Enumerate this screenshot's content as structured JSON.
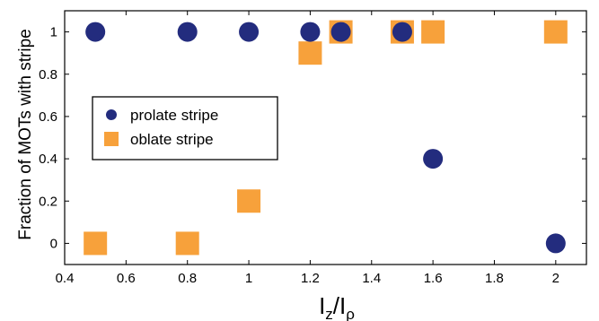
{
  "chart_data": {
    "type": "scatter",
    "xlabel": "I",
    "xlabel_sub_1": "z",
    "xlabel_sep": "/I",
    "xlabel_sub_2": "ρ",
    "ylabel": "Fraction of MOTs with stripe",
    "xlim": [
      0.4,
      2.1
    ],
    "ylim": [
      -0.1,
      1.1
    ],
    "xticks": [
      0.4,
      0.6,
      0.8,
      1,
      1.2,
      1.4,
      1.6,
      1.8,
      2
    ],
    "xtick_labels": [
      "0.4",
      "0.6",
      "0.8",
      "1",
      "1.2",
      "1.4",
      "1.6",
      "1.8",
      "2"
    ],
    "yticks": [
      0,
      0.2,
      0.4,
      0.6,
      0.8,
      1
    ],
    "ytick_labels": [
      "0",
      "0.2",
      "0.4",
      "0.6",
      "0.8",
      "1"
    ],
    "grid": false,
    "legend_position": "middle-left",
    "series": [
      {
        "name": "oblate stripe",
        "marker": "square",
        "color": "#F7A13B",
        "x": [
          0.5,
          0.8,
          1.0,
          1.2,
          1.3,
          1.5,
          1.6,
          2.0
        ],
        "y": [
          0,
          0,
          0.2,
          0.9,
          1,
          1,
          1,
          1
        ]
      },
      {
        "name": "prolate stripe",
        "marker": "circle",
        "color": "#232C7E",
        "x": [
          0.5,
          0.8,
          1.0,
          1.2,
          1.3,
          1.5,
          1.6,
          2.0
        ],
        "y": [
          1,
          1,
          1,
          1,
          1,
          1,
          0.4,
          0
        ]
      }
    ],
    "legend_order": [
      "prolate stripe",
      "oblate stripe"
    ]
  }
}
